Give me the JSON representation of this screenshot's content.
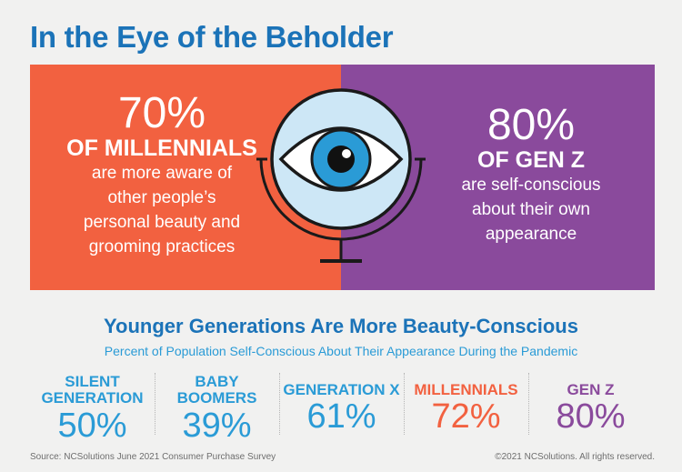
{
  "title": "In the Eye of the Beholder",
  "left_panel": {
    "percent": "70%",
    "group": "OF MILLENNIALS",
    "lines": [
      "are more aware of",
      "other people’s",
      "personal beauty and",
      "grooming practices"
    ],
    "color": "#f26140"
  },
  "right_panel": {
    "percent": "80%",
    "group": "OF GEN Z",
    "lines": [
      "are self-conscious",
      "about their own",
      "appearance"
    ],
    "color": "#8a4a9c"
  },
  "eye_icon": "eye-mirror-icon",
  "section": {
    "heading": "Younger Generations Are More Beauty-Conscious",
    "subheading": "Percent of Population Self-Conscious About Their Appearance During the Pandemic"
  },
  "generations": [
    {
      "label1": "SILENT",
      "label2": "GENERATION",
      "value": "50%",
      "color": "#2a9bd6"
    },
    {
      "label1": "BABY",
      "label2": "BOOMERS",
      "value": "39%",
      "color": "#2a9bd6"
    },
    {
      "label1": "GENERATION X",
      "label2": "",
      "value": "61%",
      "color": "#2a9bd6"
    },
    {
      "label1": "MILLENNIALS",
      "label2": "",
      "value": "72%",
      "color": "#f26140"
    },
    {
      "label1": "GEN Z",
      "label2": "",
      "value": "80%",
      "color": "#8a4a9c"
    }
  ],
  "footer": {
    "source": "Source: NCSolutions June 2021 Consumer Purchase Survey",
    "copyright": "©2021 NCSolutions. All rights reserved."
  }
}
